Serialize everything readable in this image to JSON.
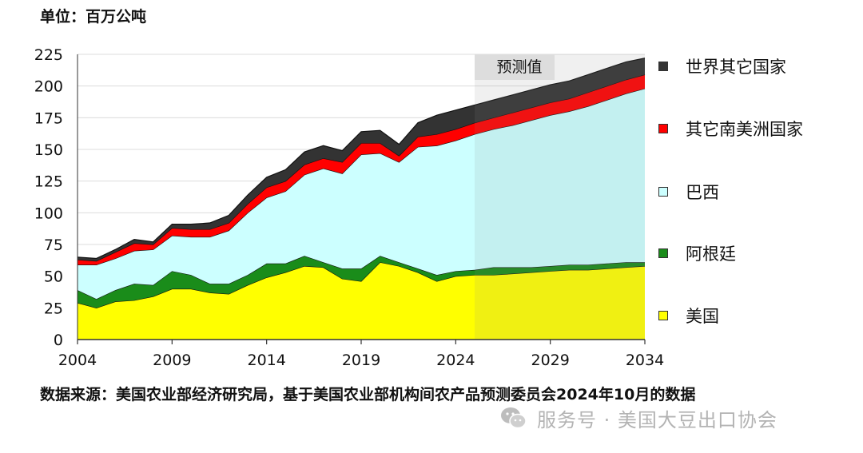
{
  "unit_label": "单位：百万公吨",
  "source_note": "数据来源：美国农业部经济研究局，基于美国农业部机构间农产品预测委员会2024年10月的数据",
  "watermark": {
    "text": "服务号 · 美国大豆出口协会",
    "icon": "wechat-icon"
  },
  "chart_data": {
    "type": "area",
    "stacked": true,
    "x": [
      2004,
      2005,
      2006,
      2007,
      2008,
      2009,
      2010,
      2011,
      2012,
      2013,
      2014,
      2015,
      2016,
      2017,
      2018,
      2019,
      2020,
      2021,
      2022,
      2023,
      2024,
      2025,
      2026,
      2027,
      2028,
      2029,
      2030,
      2031,
      2032,
      2033,
      2034
    ],
    "x_ticks": [
      2004,
      2009,
      2014,
      2019,
      2024,
      2029,
      2034
    ],
    "ylim": [
      0,
      225
    ],
    "y_ticks": [
      0,
      25,
      50,
      75,
      100,
      125,
      150,
      175,
      200,
      225
    ],
    "grid": true,
    "forecast": {
      "start": 2025,
      "end": 2034,
      "label": "预测值"
    },
    "series": [
      {
        "name": "美国",
        "color": "#ffff00",
        "values": [
          29,
          25,
          30,
          31,
          34,
          40,
          40,
          37,
          36,
          43,
          49,
          53,
          58,
          57,
          48,
          46,
          61,
          58,
          53,
          46,
          50,
          51,
          51,
          52,
          53,
          54,
          55,
          55,
          56,
          57,
          58
        ]
      },
      {
        "name": "阿根廷",
        "color": "#1a8c1a",
        "values": [
          10,
          7,
          9,
          13,
          9,
          14,
          11,
          7,
          8,
          8,
          11,
          7,
          8,
          4,
          8,
          10,
          5,
          3,
          3,
          5,
          4,
          4,
          6,
          5,
          4,
          4,
          4,
          4,
          4,
          4,
          3
        ]
      },
      {
        "name": "巴西",
        "color": "#ccffff",
        "values": [
          20,
          27,
          25,
          26,
          28,
          28,
          30,
          37,
          42,
          49,
          52,
          57,
          64,
          74,
          75,
          90,
          81,
          79,
          96,
          102,
          103,
          107,
          109,
          112,
          116,
          119,
          121,
          125,
          129,
          133,
          137
        ]
      },
      {
        "name": "其它南美洲国家",
        "color": "#ff0000",
        "values": [
          4,
          3,
          5,
          6,
          4,
          6,
          6,
          6,
          6,
          7,
          8,
          8,
          8,
          8,
          9,
          9,
          8,
          5,
          8,
          9,
          9,
          9,
          9,
          10,
          10,
          10,
          10,
          11,
          11,
          11,
          11
        ]
      },
      {
        "name": "世界其它国家",
        "color": "#333333",
        "values": [
          2,
          2,
          2,
          3,
          2,
          3,
          4,
          5,
          6,
          7,
          8,
          9,
          10,
          10,
          9,
          9,
          10,
          9,
          11,
          15,
          15,
          14,
          14,
          14,
          14,
          14,
          14,
          14,
          14,
          14,
          13
        ]
      }
    ]
  }
}
